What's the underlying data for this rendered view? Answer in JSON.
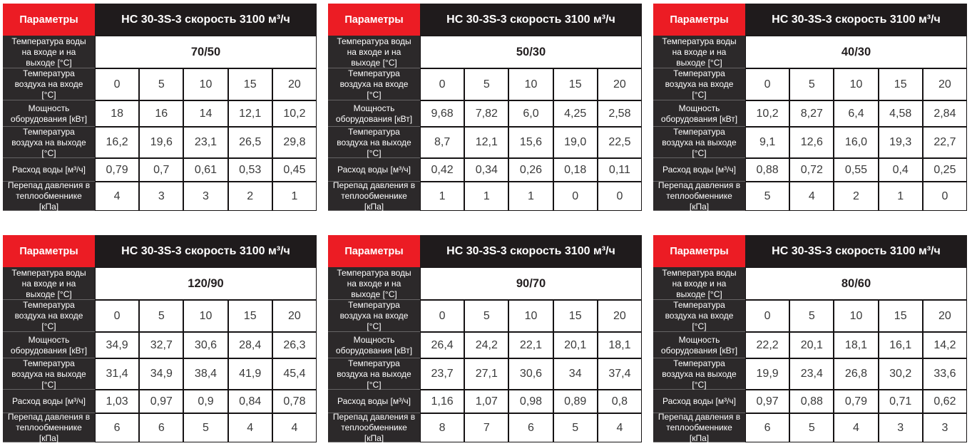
{
  "colors": {
    "accent_red": "#EC1C24",
    "header_dark": "#1F1B1C",
    "label_bg": "#2C292A",
    "data_text": "#3A3A3A",
    "border_black": "#161314"
  },
  "shared": {
    "param_label": "Параметры",
    "title": "НС 30-3S-3 скорость 3100 м³/ч",
    "row_labels": {
      "water_temp": "Температура воды на входе и на выходе [°C]",
      "air_in": "Температура воздуха на входе [°C]",
      "power": "Мощность оборудования [кВт]",
      "air_out": "Температура воздуха на выходе [°C]",
      "water_flow": "Расход воды [м³/ч]",
      "pressure_drop": "Перепад давления в теплообменнике [кПа]"
    },
    "air_in_values": [
      "0",
      "5",
      "10",
      "15",
      "20"
    ]
  },
  "tables": [
    {
      "water_temp": "70/50",
      "power": [
        "18",
        "16",
        "14",
        "12,1",
        "10,2"
      ],
      "air_out": [
        "16,2",
        "19,6",
        "23,1",
        "26,5",
        "29,8"
      ],
      "water_flow": [
        "0,79",
        "0,7",
        "0,61",
        "0,53",
        "0,45"
      ],
      "pressure_drop": [
        "4",
        "3",
        "3",
        "2",
        "1"
      ]
    },
    {
      "water_temp": "50/30",
      "power": [
        "9,68",
        "7,82",
        "6,0",
        "4,25",
        "2,58"
      ],
      "air_out": [
        "8,7",
        "12,1",
        "15,6",
        "19,0",
        "22,5"
      ],
      "water_flow": [
        "0,42",
        "0,34",
        "0,26",
        "0,18",
        "0,11"
      ],
      "pressure_drop": [
        "1",
        "1",
        "1",
        "0",
        "0"
      ]
    },
    {
      "water_temp": "40/30",
      "power": [
        "10,2",
        "8,27",
        "6,4",
        "4,58",
        "2,84"
      ],
      "air_out": [
        "9,1",
        "12,6",
        "16,0",
        "19,3",
        "22,7"
      ],
      "water_flow": [
        "0,88",
        "0,72",
        "0,55",
        "0,4",
        "0,25"
      ],
      "pressure_drop": [
        "5",
        "4",
        "2",
        "1",
        "0"
      ]
    },
    {
      "water_temp": "120/90",
      "power": [
        "34,9",
        "32,7",
        "30,6",
        "28,4",
        "26,3"
      ],
      "air_out": [
        "31,4",
        "34,9",
        "38,4",
        "41,9",
        "45,4"
      ],
      "water_flow": [
        "1,03",
        "0,97",
        "0,9",
        "0,84",
        "0,78"
      ],
      "pressure_drop": [
        "6",
        "6",
        "5",
        "4",
        "4"
      ]
    },
    {
      "water_temp": "90/70",
      "power": [
        "26,4",
        "24,2",
        "22,1",
        "20,1",
        "18,1"
      ],
      "air_out": [
        "23,7",
        "27,1",
        "30,6",
        "34",
        "37,4"
      ],
      "water_flow": [
        "1,16",
        "1,07",
        "0,98",
        "0,89",
        "0,8"
      ],
      "pressure_drop": [
        "8",
        "7",
        "6",
        "5",
        "4"
      ]
    },
    {
      "water_temp": "80/60",
      "power": [
        "22,2",
        "20,1",
        "18,1",
        "16,1",
        "14,2"
      ],
      "air_out": [
        "19,9",
        "23,4",
        "26,8",
        "30,2",
        "33,6"
      ],
      "water_flow": [
        "0,97",
        "0,88",
        "0,79",
        "0,71",
        "0,62"
      ],
      "pressure_drop": [
        "6",
        "5",
        "4",
        "3",
        "3"
      ]
    }
  ]
}
